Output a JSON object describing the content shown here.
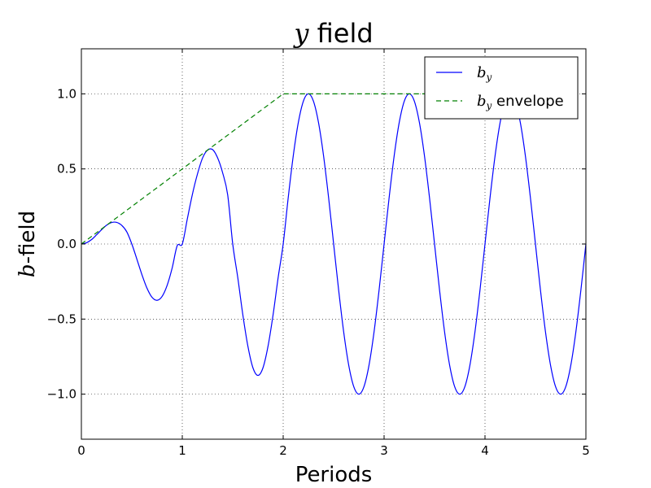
{
  "chart_data": {
    "type": "line",
    "title": {
      "math": "y",
      "text": " field"
    },
    "xlabel": "Periods",
    "ylabel": {
      "math": "b",
      "text": "-field"
    },
    "xlim": [
      0,
      5
    ],
    "ylim": [
      -1.3,
      1.3
    ],
    "grid": true,
    "legend_placement": "top-right",
    "x_ticks": [
      {
        "value": 0,
        "label": "0"
      },
      {
        "value": 1,
        "label": "1"
      },
      {
        "value": 2,
        "label": "2"
      },
      {
        "value": 3,
        "label": "3"
      },
      {
        "value": 4,
        "label": "4"
      },
      {
        "value": 5,
        "label": "5"
      }
    ],
    "y_ticks": [
      {
        "value": -1.0,
        "label": "−1.0"
      },
      {
        "value": -0.5,
        "label": "−0.5"
      },
      {
        "value": 0.0,
        "label": "0.0"
      },
      {
        "value": 0.5,
        "label": "0.5"
      },
      {
        "value": 1.0,
        "label": "1.0"
      }
    ],
    "series": [
      {
        "name": {
          "math": "b",
          "sub": "y",
          "text": ""
        },
        "color": "#0000ff",
        "style": "solid",
        "x": [
          0,
          0.05,
          0.1,
          0.15,
          0.2,
          0.25,
          0.3,
          0.35,
          0.4,
          0.45,
          0.5,
          0.55,
          0.6,
          0.65,
          0.7,
          0.75,
          0.8,
          0.85,
          0.9,
          0.95,
          1.0,
          1.05,
          1.1,
          1.15,
          1.2,
          1.25,
          1.3,
          1.35,
          1.4,
          1.45,
          1.5,
          1.55,
          1.6,
          1.65,
          1.7,
          1.75,
          1.8,
          1.85,
          1.9,
          1.95,
          2.0,
          2.05,
          2.1,
          2.15,
          2.2,
          2.25,
          2.3,
          2.35,
          2.4,
          2.45,
          2.5,
          2.55,
          2.6,
          2.65,
          2.7,
          2.75,
          2.8,
          2.85,
          2.9,
          2.95,
          3.0,
          3.05,
          3.1,
          3.15,
          3.2,
          3.25,
          3.3,
          3.35,
          3.4,
          3.45,
          3.5,
          3.55,
          3.6,
          3.65,
          3.7,
          3.75,
          3.8,
          3.85,
          3.9,
          3.95,
          4.0,
          4.05,
          4.1,
          4.15,
          4.2,
          4.25,
          4.3,
          4.35,
          4.4,
          4.45,
          4.5,
          4.55,
          4.6,
          4.65,
          4.7,
          4.75,
          4.8,
          4.85,
          4.9,
          4.95,
          5.0
        ],
        "y": [
          0,
          0.008,
          0.029,
          0.061,
          0.095,
          0.125,
          0.143,
          0.144,
          0.124,
          0.081,
          0.0,
          -0.101,
          -0.204,
          -0.294,
          -0.355,
          -0.375,
          -0.349,
          -0.275,
          -0.159,
          -0.011,
          0.0,
          0.167,
          0.33,
          0.465,
          0.571,
          0.625,
          0.629,
          0.574,
          0.474,
          0.327,
          0.0,
          -0.224,
          -0.471,
          -0.68,
          -0.824,
          -0.875,
          -0.824,
          -0.68,
          -0.471,
          -0.224,
          0.0,
          0.309,
          0.588,
          0.809,
          0.951,
          1.0,
          0.951,
          0.809,
          0.588,
          0.309,
          0.0,
          -0.309,
          -0.588,
          -0.809,
          -0.951,
          -1.0,
          -0.951,
          -0.809,
          -0.588,
          -0.309,
          0.0,
          0.309,
          0.588,
          0.809,
          0.951,
          1.0,
          0.951,
          0.809,
          0.588,
          0.309,
          0.0,
          -0.309,
          -0.588,
          -0.809,
          -0.951,
          -1.0,
          -0.951,
          -0.809,
          -0.588,
          -0.309,
          0.0,
          0.309,
          0.588,
          0.809,
          0.951,
          1.0,
          0.951,
          0.809,
          0.588,
          0.309,
          0.0,
          -0.309,
          -0.588,
          -0.809,
          -0.951,
          -1.0,
          -0.951,
          -0.809,
          -0.588,
          -0.309,
          0.0
        ]
      },
      {
        "name": {
          "math": "b",
          "sub": "y",
          "text": " envelope"
        },
        "color": "#008000",
        "style": "dashed",
        "x": [
          0,
          2,
          3.5
        ],
        "y": [
          0,
          1,
          1
        ]
      }
    ]
  }
}
